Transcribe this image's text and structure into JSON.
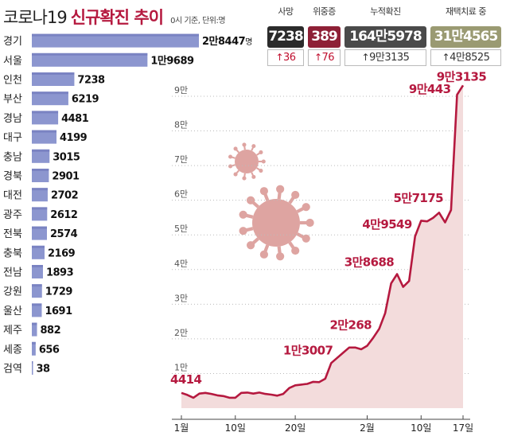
{
  "header": {
    "title_main": "코로나19",
    "title_strong": "신규확진 추이",
    "note": "0시 기준, 단위:명"
  },
  "stats": [
    {
      "label": "사망",
      "value": "7238",
      "change": "36",
      "box_color": "#2b2b2b",
      "change_color": "#c0102f"
    },
    {
      "label": "위중증",
      "value": "389",
      "change": "76",
      "box_color": "#8e2036",
      "change_color": "#c0102f"
    },
    {
      "label": "누적확진",
      "value": "164만5978",
      "change": "9만3135",
      "box_color": "#4a4a4a",
      "change_color": "#333333"
    },
    {
      "label": "재택치료 중",
      "value": "31만4565",
      "change": "4만8525",
      "box_color": "#9a9a72",
      "change_color": "#333333"
    }
  ],
  "colors": {
    "bar": "#8c96cf",
    "bar_dark": "#6b74b8",
    "line": "#b5193f",
    "area": "#f3dcdc",
    "grid": "#bbbbbb",
    "virus": "#d99591"
  },
  "icons": [
    "up-arrow-icon",
    "virus-icon"
  ],
  "chart_data": [
    {
      "type": "bar",
      "orientation": "horizontal",
      "categories": [
        "경기",
        "서울",
        "인천",
        "부산",
        "경남",
        "대구",
        "충남",
        "경북",
        "대전",
        "광주",
        "전북",
        "충북",
        "전남",
        "강원",
        "울산",
        "제주",
        "세종",
        "검역"
      ],
      "values": [
        28447,
        19689,
        7238,
        6219,
        4481,
        4199,
        3015,
        2901,
        2702,
        2612,
        2574,
        2169,
        1893,
        1729,
        1691,
        882,
        656,
        38
      ],
      "value_labels": [
        "2만8447",
        "1만9689",
        "7238",
        "6219",
        "4481",
        "4199",
        "3015",
        "2901",
        "2702",
        "2612",
        "2574",
        "2169",
        "1893",
        "1729",
        "1691",
        "882",
        "656",
        "38"
      ],
      "first_label_unit": "명"
    },
    {
      "type": "area",
      "x_ticks": [
        "1월",
        "10일",
        "20일",
        "2월",
        "10일",
        "17일"
      ],
      "y_ticks": [
        "1만",
        "2만",
        "3만",
        "4만",
        "5만",
        "6만",
        "7만",
        "8만",
        "9만"
      ],
      "ylim": [
        0,
        95000
      ],
      "x": [
        "1/1",
        "1/2",
        "1/3",
        "1/4",
        "1/5",
        "1/6",
        "1/7",
        "1/8",
        "1/9",
        "1/10",
        "1/11",
        "1/12",
        "1/13",
        "1/14",
        "1/15",
        "1/16",
        "1/17",
        "1/18",
        "1/19",
        "1/20",
        "1/21",
        "1/22",
        "1/23",
        "1/24",
        "1/25",
        "1/26",
        "1/27",
        "1/28",
        "1/29",
        "1/30",
        "1/31",
        "2/1",
        "2/2",
        "2/3",
        "2/4",
        "2/5",
        "2/6",
        "2/7",
        "2/8",
        "2/9",
        "2/10",
        "2/11",
        "2/12",
        "2/13",
        "2/14",
        "2/15",
        "2/16",
        "2/17"
      ],
      "values": [
        4414,
        3800,
        3000,
        4200,
        4400,
        4100,
        3700,
        3500,
        3000,
        3000,
        4400,
        4500,
        4200,
        4500,
        4100,
        3900,
        3600,
        4100,
        5800,
        6600,
        6800,
        7000,
        7600,
        7500,
        8500,
        13007,
        14500,
        16000,
        17500,
        17500,
        17000,
        18000,
        20268,
        22900,
        27400,
        36000,
        38688,
        35000,
        36700,
        49549,
        54100,
        53900,
        54900,
        56400,
        53600,
        57175,
        90443,
        93135
      ],
      "point_labels": [
        {
          "index": 0,
          "text": "4414"
        },
        {
          "index": 25,
          "text": "1만3007"
        },
        {
          "index": 32,
          "text": "2만268"
        },
        {
          "index": 36,
          "text": "3만8688"
        },
        {
          "index": 39,
          "text": "4만9549"
        },
        {
          "index": 45,
          "text": "5만7175"
        },
        {
          "index": 46,
          "text": "9만443"
        },
        {
          "index": 47,
          "text": "9만3135"
        }
      ]
    }
  ]
}
